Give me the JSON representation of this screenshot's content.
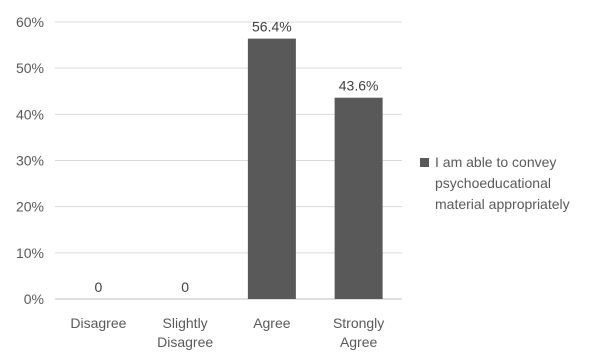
{
  "chart_data": {
    "type": "bar",
    "categories": [
      [
        "Disagree"
      ],
      [
        "Slightly",
        "Disagree"
      ],
      [
        "Agree"
      ],
      [
        "Strongly",
        "Agree"
      ]
    ],
    "series": [
      {
        "name": "I am able to convey psychoeducational material appropriately",
        "values": [
          0,
          0,
          56.4,
          43.6
        ],
        "data_labels": [
          "0",
          "0",
          "56.4%",
          "43.6%"
        ],
        "color": "#595959"
      }
    ],
    "y_ticks": [
      "0%",
      "10%",
      "20%",
      "30%",
      "40%",
      "50%",
      "60%"
    ],
    "ylim": [
      0,
      60
    ],
    "grid": true,
    "legend_position": "right",
    "gridline_color": "#d9d9d9"
  }
}
